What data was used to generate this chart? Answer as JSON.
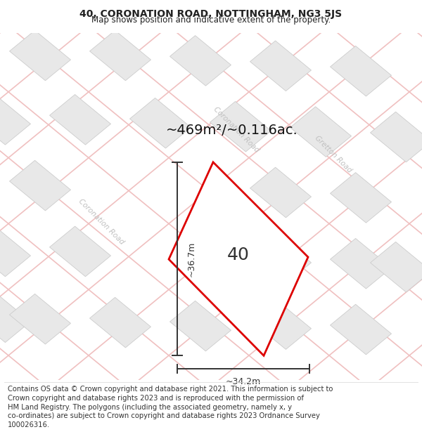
{
  "title": "40, CORONATION ROAD, NOTTINGHAM, NG3 5JS",
  "subtitle": "Map shows position and indicative extent of the property.",
  "footer": "Contains OS data © Crown copyright and database right 2021. This information is subject to Crown copyright and database rights 2023 and is reproduced with the permission of HM Land Registry. The polygons (including the associated geometry, namely x, y co-ordinates) are subject to Crown copyright and database rights 2023 Ordnance Survey 100026316.",
  "area_label": "~469m²/~0.116ac.",
  "property_number": "40",
  "dim_height": "~36.7m",
  "dim_width": "~34.2m",
  "map_bg": "#ffffff",
  "road_color_pink": "#f0c0c0",
  "block_color": "#e8e8e8",
  "block_edge": "#cccccc",
  "property_fill": "#ffffff",
  "property_edge": "#dd0000",
  "road_label_color": "#c0c0c0",
  "title_fontsize": 10,
  "subtitle_fontsize": 8.5,
  "footer_fontsize": 7.2,
  "area_fontsize": 14,
  "number_fontsize": 18,
  "dim_fontsize": 9,
  "road_label_fontsize": 7.5,
  "title_color": "#222222",
  "dim_color": "#333333",
  "number_color": "#333333",
  "area_color": "#111111",
  "footer_color": "#333333",
  "road_lw": 1.2,
  "block_lw": 0.6
}
